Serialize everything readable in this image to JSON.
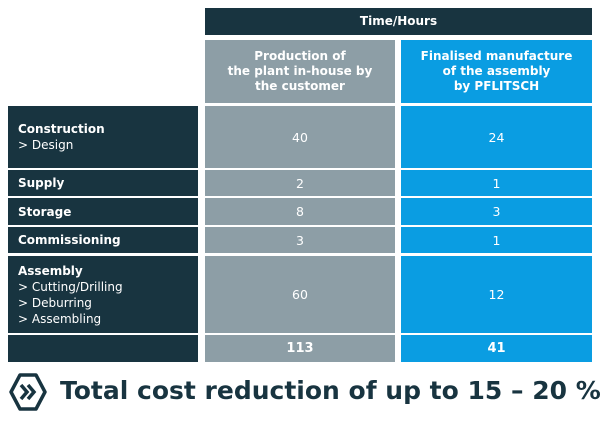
{
  "header": {
    "title": "Time/Hours"
  },
  "columns": [
    {
      "lines": [
        "Production of",
        "the plant in-house by",
        "the customer"
      ]
    },
    {
      "lines": [
        "Finalised manufacture",
        "of the assembly",
        "by PFLITSCH"
      ]
    }
  ],
  "rows": [
    {
      "label": "Construction",
      "sublabels": [
        "> Design"
      ],
      "values": [
        "40",
        "24"
      ]
    },
    {
      "label": "Supply",
      "sublabels": [],
      "values": [
        "2",
        "1"
      ]
    },
    {
      "label": "Storage",
      "sublabels": [],
      "values": [
        "8",
        "3"
      ]
    },
    {
      "label": "Commissioning",
      "sublabels": [],
      "values": [
        "3",
        "1"
      ]
    },
    {
      "label": "Assembly",
      "sublabels": [
        "> Cutting/Drilling",
        "> Deburring",
        "> Assembling"
      ],
      "values": [
        "60",
        "12"
      ]
    }
  ],
  "totals": [
    "113",
    "41"
  ],
  "footer": {
    "text": "Total cost reduction of up to 15 – 20 %"
  }
}
